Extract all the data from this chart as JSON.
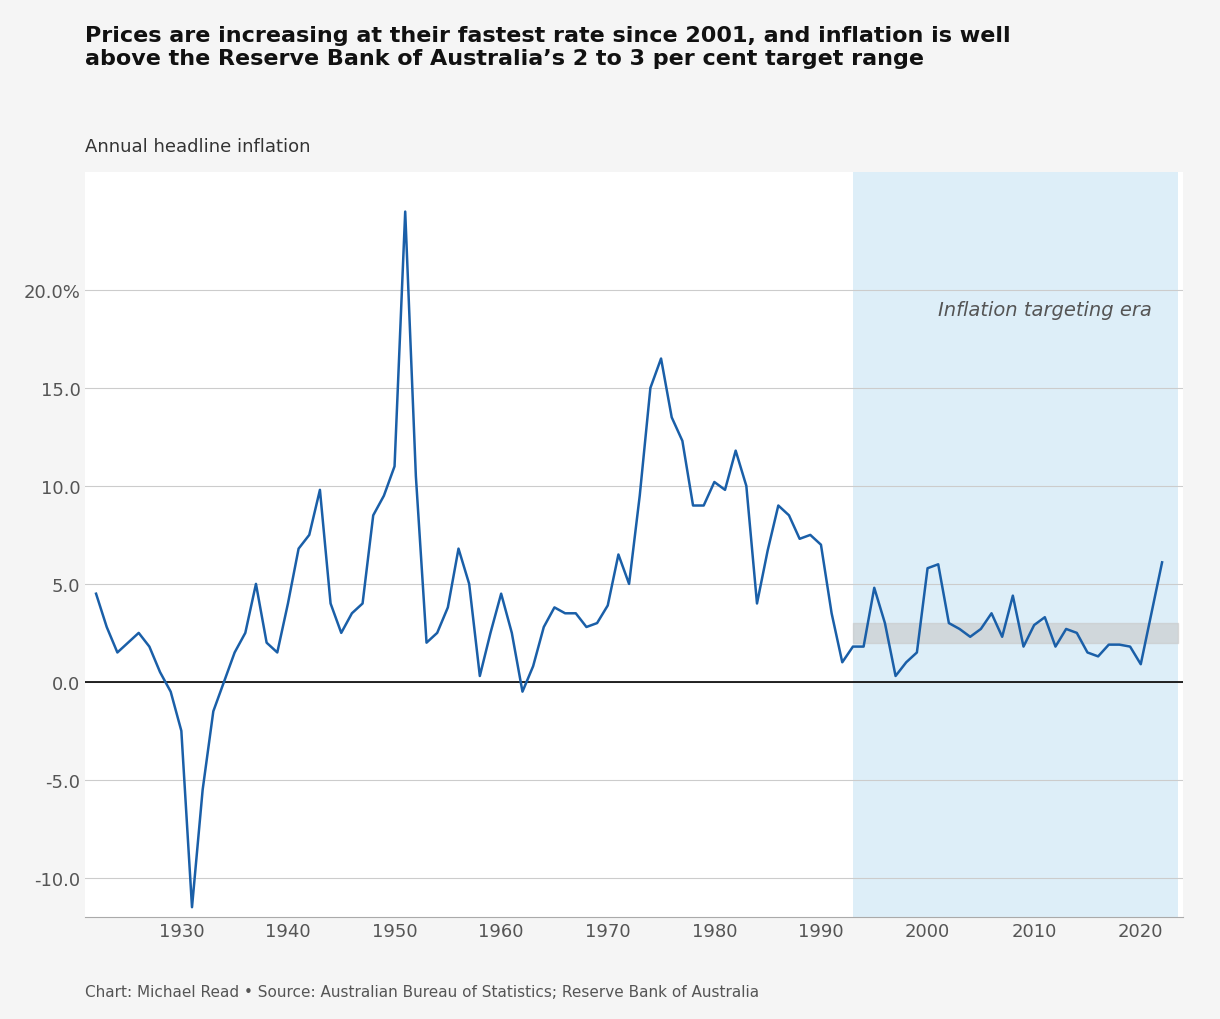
{
  "title": "Prices are increasing at their fastest rate since 2001, and inflation is well\nabove the Reserve Bank of Australia’s 2 to 3 per cent target range",
  "subtitle": "Annual headline inflation",
  "source": "Chart: Michael Read • Source: Australian Bureau of Statistics; Reserve Bank of Australia",
  "line_color": "#1a5fa8",
  "background_color": "#f5f5f5",
  "plot_bg_color": "#ffffff",
  "shaded_region_color": "#ddeef8",
  "target_band_color": "#c8c8c8",
  "target_band_low": 2.0,
  "target_band_high": 3.0,
  "inflation_targeting_start": 1993,
  "inflation_targeting_label": "Inflation targeting era",
  "zero_line_color": "#000000",
  "grid_color": "#cccccc",
  "ylim": [
    -12,
    26
  ],
  "yticks": [
    -10.0,
    -5.0,
    0.0,
    5.0,
    10.0,
    15.0,
    20.0
  ],
  "xtick_years": [
    1930,
    1940,
    1950,
    1960,
    1970,
    1980,
    1990,
    2000,
    2010,
    2020
  ],
  "data": {
    "years": [
      1922,
      1923,
      1924,
      1925,
      1926,
      1927,
      1928,
      1929,
      1930,
      1931,
      1932,
      1933,
      1934,
      1935,
      1936,
      1937,
      1938,
      1939,
      1940,
      1941,
      1942,
      1943,
      1944,
      1945,
      1946,
      1947,
      1948,
      1949,
      1950,
      1951,
      1952,
      1953,
      1954,
      1955,
      1956,
      1957,
      1958,
      1959,
      1960,
      1961,
      1962,
      1963,
      1964,
      1965,
      1966,
      1967,
      1968,
      1969,
      1970,
      1971,
      1972,
      1973,
      1974,
      1975,
      1976,
      1977,
      1978,
      1979,
      1980,
      1981,
      1982,
      1983,
      1984,
      1985,
      1986,
      1987,
      1988,
      1989,
      1990,
      1991,
      1992,
      1993,
      1994,
      1995,
      1996,
      1997,
      1998,
      1999,
      2000,
      2001,
      2002,
      2003,
      2004,
      2005,
      2006,
      2007,
      2008,
      2009,
      2010,
      2011,
      2012,
      2013,
      2014,
      2015,
      2016,
      2017,
      2018,
      2019,
      2020,
      2021,
      2022
    ],
    "values": [
      4.5,
      2.8,
      1.5,
      2.0,
      2.5,
      1.8,
      0.5,
      -0.5,
      -2.5,
      -11.5,
      -5.5,
      -1.5,
      0.0,
      1.5,
      2.5,
      5.0,
      2.0,
      1.5,
      4.0,
      6.8,
      7.5,
      9.8,
      4.0,
      2.5,
      3.5,
      4.0,
      8.5,
      9.5,
      11.0,
      24.0,
      10.5,
      2.0,
      2.5,
      3.8,
      6.8,
      5.0,
      0.3,
      2.5,
      4.5,
      2.5,
      -0.5,
      0.8,
      2.8,
      3.8,
      3.5,
      3.5,
      2.8,
      3.0,
      3.9,
      6.5,
      5.0,
      9.5,
      15.0,
      16.5,
      13.5,
      12.3,
      9.0,
      9.0,
      10.2,
      9.8,
      11.8,
      10.0,
      4.0,
      6.7,
      9.0,
      8.5,
      7.3,
      7.5,
      7.0,
      3.5,
      1.0,
      1.8,
      1.8,
      4.8,
      3.0,
      0.3,
      1.0,
      1.5,
      5.8,
      6.0,
      3.0,
      2.7,
      2.3,
      2.7,
      3.5,
      2.3,
      4.4,
      1.8,
      2.9,
      3.3,
      1.8,
      2.7,
      2.5,
      1.5,
      1.3,
      1.9,
      1.9,
      1.8,
      0.9,
      3.5,
      6.1
    ]
  }
}
